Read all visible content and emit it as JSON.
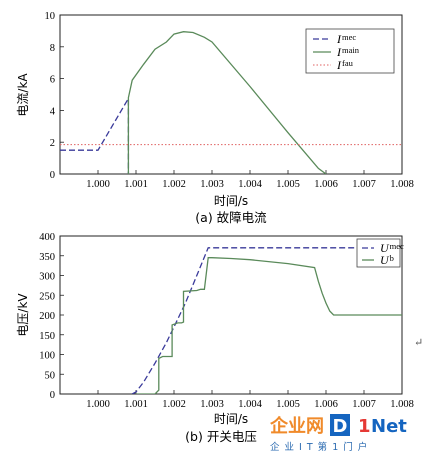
{
  "chart_data": [
    {
      "type": "line",
      "caption": "(a) 故障电流",
      "xlabel": "时间/s",
      "ylabel": "电流/kA",
      "xlim": [
        0.999,
        1.008
      ],
      "ylim": [
        0,
        10
      ],
      "xticks": [
        "1.000",
        "1.001",
        "1.002",
        "1.003",
        "1.004",
        "1.005",
        "1.006",
        "1.007",
        "1.008"
      ],
      "yticks": [
        "0",
        "2",
        "4",
        "6",
        "8",
        "10"
      ],
      "legend_position": "top-right",
      "series": [
        {
          "name": "I_mec",
          "name_main": "I",
          "name_sub": "mec",
          "style": "dashed",
          "color": "#3a3a9a",
          "x": [
            0.999,
            1.0,
            1.00075,
            1.0008,
            1.0008
          ],
          "y": [
            1.5,
            1.5,
            4.55,
            4.75,
            0
          ]
        },
        {
          "name": "I_main",
          "name_main": "I",
          "name_sub": "main",
          "style": "solid",
          "color": "#5a8a5a",
          "x": [
            1.0008,
            1.0008,
            1.0009,
            1.0012,
            1.0015,
            1.0018,
            1.002,
            1.00225,
            1.0025,
            1.0028,
            1.003,
            1.004,
            1.005,
            1.0058,
            1.006
          ],
          "y": [
            0,
            4.8,
            5.9,
            6.9,
            7.85,
            8.3,
            8.8,
            8.95,
            8.9,
            8.6,
            8.3,
            5.5,
            2.6,
            0.35,
            0
          ]
        },
        {
          "name": "I_fau",
          "name_main": "I",
          "name_sub": "fau",
          "style": "dotted",
          "color": "#e06060",
          "x": [
            0.999,
            1.008
          ],
          "y": [
            1.85,
            1.85
          ]
        }
      ]
    },
    {
      "type": "line",
      "caption": "(b) 开关电压",
      "xlabel": "时间/s",
      "ylabel": "电压/kV",
      "xlim": [
        0.999,
        1.008
      ],
      "ylim": [
        0,
        400
      ],
      "xticks": [
        "1.000",
        "1.001",
        "1.002",
        "1.003",
        "1.004",
        "1.005",
        "1.006",
        "1.007",
        "1.008"
      ],
      "yticks": [
        "0",
        "50",
        "100",
        "150",
        "200",
        "250",
        "300",
        "350",
        "400"
      ],
      "legend_position": "top-right",
      "series": [
        {
          "name": "U_mec",
          "name_main": "U",
          "name_sub": "mec",
          "style": "dashed",
          "color": "#3a3a9a",
          "x": [
            1.0009,
            1.001,
            1.0012,
            1.0015,
            1.0018,
            1.002,
            1.0023,
            1.0026,
            1.0029,
            1.008
          ],
          "y": [
            0,
            5,
            30,
            78,
            130,
            170,
            230,
            300,
            370,
            370
          ]
        },
        {
          "name": "U_b",
          "name_main": "U",
          "name_sub": "b",
          "style": "solid",
          "color": "#5a8a5a",
          "x": [
            1.001,
            1.0015,
            1.0016,
            1.0016,
            1.0017,
            1.0019,
            1.00195,
            1.00195,
            1.0021,
            1.0022,
            1.00225,
            1.00225,
            1.0026,
            1.0027,
            1.0028,
            1.0029,
            1.003,
            1.0035,
            1.004,
            1.005,
            1.0057,
            1.0058,
            1.0059,
            1.006,
            1.0061,
            1.0062,
            1.008
          ],
          "y": [
            0,
            0,
            10,
            90,
            95,
            95,
            95,
            175,
            180,
            180,
            182,
            260,
            262,
            265,
            265,
            345,
            345,
            343,
            340,
            330,
            320,
            285,
            255,
            230,
            210,
            200,
            200
          ]
        }
      ]
    }
  ],
  "watermark": {
    "logo_parts": [
      "企业网",
      "D",
      "1",
      "Net"
    ],
    "subtitle": "企 业 I T 第 1 门 户",
    "marker": "↵"
  }
}
